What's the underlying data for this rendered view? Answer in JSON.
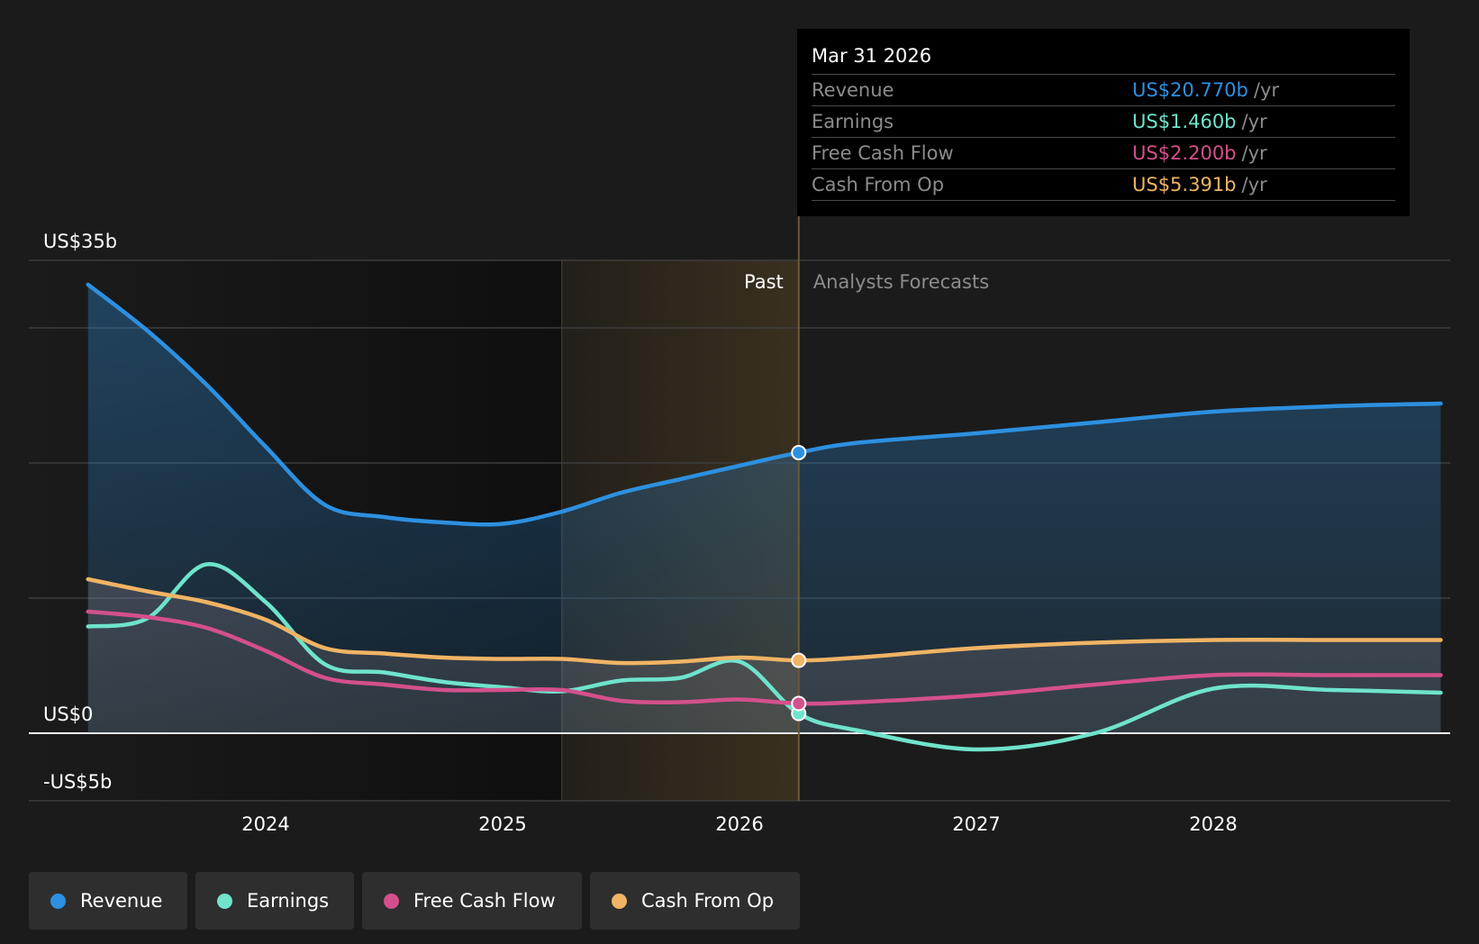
{
  "tooltip": {
    "date": "Mar 31 2026",
    "rows": [
      {
        "label": "Revenue",
        "value": "US$20.770b",
        "unit": "/yr",
        "color": "#2d90e0"
      },
      {
        "label": "Earnings",
        "value": "US$1.460b",
        "unit": "/yr",
        "color": "#6fe3cc"
      },
      {
        "label": "Free Cash Flow",
        "value": "US$2.200b",
        "unit": "/yr",
        "color": "#d4508c"
      },
      {
        "label": "Cash From Op",
        "value": "US$5.391b",
        "unit": "/yr",
        "color": "#f0b464"
      }
    ]
  },
  "legend": [
    {
      "label": "Revenue",
      "color": "#2d90e0"
    },
    {
      "label": "Earnings",
      "color": "#6fe3cc"
    },
    {
      "label": "Free Cash Flow",
      "color": "#d4508c"
    },
    {
      "label": "Cash From Op",
      "color": "#f0b464"
    }
  ],
  "chart_data": {
    "type": "line",
    "ylim": [
      -5,
      35
    ],
    "xlim": [
      2023.25,
      2028.96
    ],
    "y_tick_labels": [
      {
        "value": 35,
        "label": "US$35b"
      },
      {
        "value": 0,
        "label": "US$0"
      },
      {
        "value": -5,
        "label": "-US$5b"
      }
    ],
    "gridlines": [
      35,
      30,
      20,
      10,
      0,
      -5
    ],
    "x_ticks": [
      {
        "value": 2024,
        "label": "2024"
      },
      {
        "value": 2025,
        "label": "2025"
      },
      {
        "value": 2026,
        "label": "2026"
      },
      {
        "value": 2027,
        "label": "2027"
      },
      {
        "value": 2028,
        "label": "2028"
      }
    ],
    "past_label": "Past",
    "forecast_label": "Analysts Forecasts",
    "divider_x": 2026.25,
    "highlight_start_x": 2025.25,
    "series": [
      {
        "name": "Revenue",
        "color": "#2d90e0",
        "fill": true,
        "x": [
          2023.25,
          2023.5,
          2023.75,
          2024,
          2024.25,
          2024.5,
          2024.75,
          2025,
          2025.25,
          2025.5,
          2025.75,
          2026,
          2026.25,
          2026.5,
          2027,
          2027.5,
          2028,
          2028.5,
          2028.96
        ],
        "y": [
          33.2,
          29.8,
          25.8,
          21.2,
          16.9,
          16.0,
          15.6,
          15.5,
          16.4,
          17.8,
          18.8,
          19.8,
          20.77,
          21.5,
          22.2,
          23.0,
          23.8,
          24.2,
          24.4
        ]
      },
      {
        "name": "Earnings",
        "color": "#6fe3cc",
        "fill": false,
        "x": [
          2023.25,
          2023.5,
          2023.75,
          2024,
          2024.25,
          2024.5,
          2024.75,
          2025,
          2025.25,
          2025.5,
          2025.75,
          2026,
          2026.25,
          2026.5,
          2027,
          2027.5,
          2028,
          2028.5,
          2028.96
        ],
        "y": [
          7.9,
          8.5,
          12.5,
          9.7,
          5.1,
          4.5,
          3.8,
          3.4,
          3.1,
          3.9,
          4.1,
          5.3,
          1.46,
          0.2,
          -1.2,
          0.0,
          3.3,
          3.2,
          3.0
        ]
      },
      {
        "name": "Free Cash Flow",
        "color": "#d4508c",
        "fill": false,
        "x": [
          2023.25,
          2023.5,
          2023.75,
          2024,
          2024.25,
          2024.5,
          2024.75,
          2025,
          2025.25,
          2025.5,
          2025.75,
          2026,
          2026.25,
          2026.5,
          2027,
          2027.5,
          2028,
          2028.5,
          2028.96
        ],
        "y": [
          9.0,
          8.6,
          7.8,
          6.1,
          4.1,
          3.6,
          3.2,
          3.2,
          3.2,
          2.4,
          2.3,
          2.5,
          2.2,
          2.3,
          2.8,
          3.6,
          4.3,
          4.3,
          4.3
        ]
      },
      {
        "name": "Cash From Op",
        "color": "#f0b464",
        "fill": false,
        "x": [
          2023.25,
          2023.5,
          2023.75,
          2024,
          2024.25,
          2024.5,
          2024.75,
          2025,
          2025.25,
          2025.5,
          2025.75,
          2026,
          2026.25,
          2026.5,
          2027,
          2027.5,
          2028,
          2028.5,
          2028.96
        ],
        "y": [
          11.4,
          10.5,
          9.7,
          8.4,
          6.3,
          5.9,
          5.6,
          5.5,
          5.5,
          5.2,
          5.3,
          5.6,
          5.391,
          5.6,
          6.3,
          6.7,
          6.9,
          6.9,
          6.9
        ]
      }
    ]
  }
}
